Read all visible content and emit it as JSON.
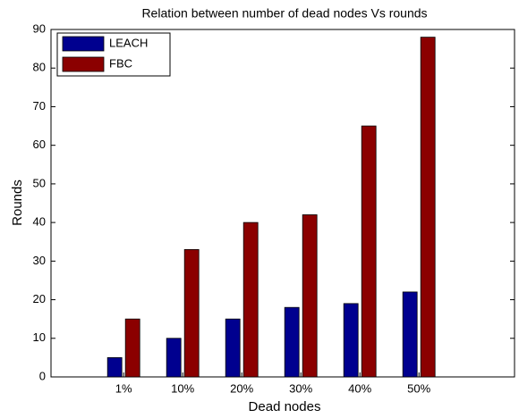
{
  "chart_data": {
    "type": "bar",
    "title": "Relation between number of dead nodes Vs rounds",
    "x_label": "Dead nodes",
    "y_label": "Rounds",
    "categories": [
      "1%",
      "10%",
      "20%",
      "30%",
      "40%",
      "50%"
    ],
    "series": [
      {
        "name": "LEACH",
        "color": "#00008f",
        "values": [
          5,
          10,
          15,
          18,
          19,
          22
        ]
      },
      {
        "name": "FBC",
        "color": "#8b0000",
        "values": [
          15,
          33,
          40,
          42,
          65,
          88
        ]
      }
    ],
    "ylim": [
      0,
      90
    ],
    "yticks": [
      0,
      10,
      20,
      30,
      40,
      50,
      60,
      70,
      80,
      90
    ],
    "grid": false,
    "legend": "top-left"
  }
}
